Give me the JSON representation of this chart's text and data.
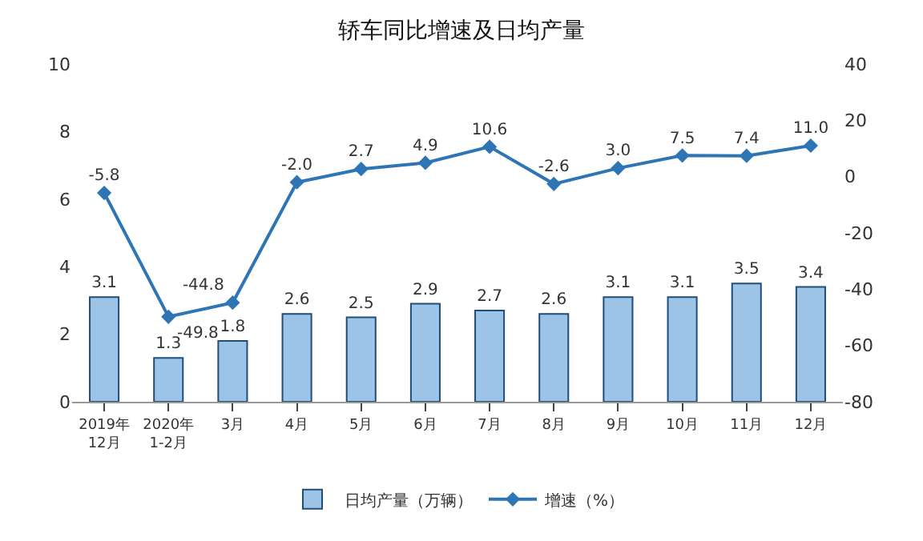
{
  "chart_data": {
    "type": "bar",
    "title": "轿车同比增速及日均产量",
    "categories": [
      "2019年\n12月",
      "2020年\n1-2月",
      "3月",
      "4月",
      "5月",
      "6月",
      "7月",
      "8月",
      "9月",
      "10月",
      "11月",
      "12月"
    ],
    "series": [
      {
        "name": "日均产量（万辆）",
        "color": "#9dc3e6",
        "values": [
          3.1,
          1.3,
          1.8,
          2.6,
          2.5,
          2.9,
          2.7,
          2.6,
          3.1,
          3.1,
          3.5,
          3.4
        ],
        "value_labels": [
          "3.1",
          "1.3",
          "1.8",
          "2.6",
          "2.5",
          "2.9",
          "2.7",
          "2.6",
          "3.1",
          "3.1",
          "3.5",
          "3.4"
        ]
      },
      {
        "name": "增速（%）",
        "type": "line",
        "axis": "y2",
        "color": "#2e75b6",
        "marker": "diamond",
        "values": [
          -5.8,
          -49.8,
          -44.8,
          -2.0,
          2.7,
          4.9,
          10.6,
          -2.6,
          3.0,
          7.5,
          7.4,
          11.0
        ],
        "value_labels": [
          "-5.8",
          "-49.8",
          "-44.8",
          "-2.0",
          "2.7",
          "4.9",
          "10.6",
          "-2.6",
          "3.0",
          "7.5",
          "7.4",
          "11.0"
        ]
      }
    ],
    "ylim": [
      0,
      10
    ],
    "yticks": [
      0,
      2,
      4,
      6,
      8,
      10
    ],
    "y2lim": [
      -80,
      40
    ],
    "y2ticks": [
      -80,
      -60,
      -40,
      -20,
      0,
      20,
      40
    ],
    "grid": false,
    "legend": "bottom"
  }
}
